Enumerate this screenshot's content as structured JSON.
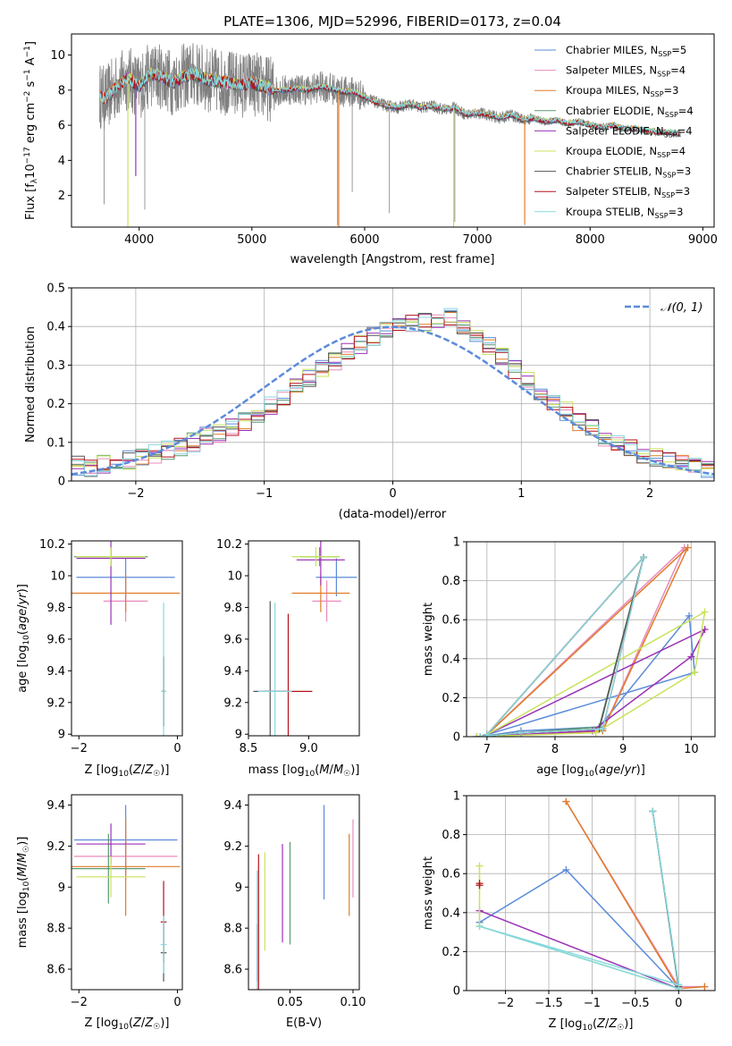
{
  "figure_title": "PLATE=1306, MJD=52996, FIBERID=0173, z=0.04",
  "colors": {
    "Chabrier MILES": "#5b8bd9",
    "Salpeter MILES": "#e88cbd",
    "Kroupa MILES": "#e07b29",
    "Chabrier ELODIE": "#5a9a72",
    "Salpeter ELODIE": "#9b32b5",
    "Kroupa ELODIE": "#c8e35a",
    "Chabrier STELIB": "#555555",
    "Salpeter STELIB": "#b5121b",
    "Kroupa STELIB": "#86d8de"
  },
  "chart_data": [
    {
      "id": "spectrum",
      "type": "line",
      "title": "PLATE=1306, MJD=52996, FIBERID=0173, z=0.04",
      "xlabel": "wavelength [Angstrom, rest frame]",
      "ylabel": "Flux [f_λ 10^-17 erg cm^-2 s^-1 A^-1]",
      "xlim": [
        3400,
        9100
      ],
      "ylim": [
        0.2,
        11.2
      ],
      "xticks": [
        4000,
        5000,
        6000,
        7000,
        8000,
        9000
      ],
      "yticks": [
        2,
        4,
        6,
        8,
        10
      ],
      "grid": false,
      "legend_position": "top-right",
      "legend": [
        {
          "name": "Chabrier MILES",
          "nssp": "5"
        },
        {
          "name": "Salpeter MILES",
          "nssp": "4"
        },
        {
          "name": "Kroupa MILES",
          "nssp": "3"
        },
        {
          "name": "Chabrier ELODIE",
          "nssp": "4"
        },
        {
          "name": "Salpeter ELODIE",
          "nssp": "4"
        },
        {
          "name": "Kroupa ELODIE",
          "nssp": "4"
        },
        {
          "name": "Chabrier STELIB",
          "nssp": "3"
        },
        {
          "name": "Salpeter STELIB",
          "nssp": "3"
        },
        {
          "name": "Kroupa STELIB",
          "nssp": "3"
        }
      ],
      "data_continuum": [
        [
          3650,
          7.7
        ],
        [
          3700,
          7.5
        ],
        [
          3800,
          8.2
        ],
        [
          3900,
          8.7
        ],
        [
          4000,
          8.2
        ],
        [
          4100,
          8.9
        ],
        [
          4200,
          8.8
        ],
        [
          4300,
          8.4
        ],
        [
          4400,
          8.8
        ],
        [
          4500,
          8.9
        ],
        [
          4600,
          8.6
        ],
        [
          4700,
          8.5
        ],
        [
          4800,
          8.4
        ],
        [
          4900,
          8.3
        ],
        [
          5000,
          8.4
        ],
        [
          5100,
          8.2
        ],
        [
          5200,
          8.0
        ],
        [
          5300,
          8.0
        ],
        [
          5400,
          8.1
        ],
        [
          5500,
          8.0
        ],
        [
          5600,
          8.2
        ],
        [
          5700,
          8.1
        ],
        [
          5800,
          7.9
        ],
        [
          5900,
          7.9
        ],
        [
          6000,
          7.6
        ],
        [
          6100,
          7.3
        ],
        [
          6200,
          7.1
        ],
        [
          6300,
          7.0
        ],
        [
          6400,
          7.2
        ],
        [
          6500,
          7.0
        ],
        [
          6600,
          7.1
        ],
        [
          6700,
          6.9
        ],
        [
          6800,
          7.0
        ],
        [
          6900,
          6.6
        ],
        [
          7000,
          6.7
        ],
        [
          7100,
          6.6
        ],
        [
          7200,
          6.4
        ],
        [
          7300,
          6.6
        ],
        [
          7400,
          6.3
        ],
        [
          7500,
          6.4
        ],
        [
          7600,
          6.2
        ],
        [
          7700,
          6.3
        ],
        [
          7800,
          6.1
        ],
        [
          7900,
          6.2
        ],
        [
          8000,
          6.0
        ],
        [
          8100,
          5.9
        ],
        [
          8200,
          6.0
        ],
        [
          8300,
          5.8
        ],
        [
          8400,
          5.8
        ],
        [
          8500,
          5.7
        ],
        [
          8600,
          5.6
        ],
        [
          8700,
          5.6
        ],
        [
          8800,
          5.5
        ]
      ],
      "data_dips": [
        [
          3690,
          1.5
        ],
        [
          4050,
          1.2
        ],
        [
          5760,
          0.3
        ],
        [
          5890,
          2.2
        ],
        [
          6220,
          1.0
        ],
        [
          6800,
          0.5
        ],
        [
          7420,
          0.3
        ]
      ],
      "model_dips": [
        {
          "wavelength": 3900,
          "flux": 0.2,
          "series": "Kroupa ELODIE"
        },
        {
          "wavelength": 3970,
          "flux": 3.1,
          "series": "Salpeter ELODIE"
        },
        {
          "wavelength": 5770,
          "flux": 0.2,
          "series": "Kroupa MILES"
        },
        {
          "wavelength": 6790,
          "flux": 0.2,
          "series": "Kroupa ELODIE"
        },
        {
          "wavelength": 7420,
          "flux": 0.4,
          "series": "Kroupa MILES"
        }
      ]
    },
    {
      "id": "residuals",
      "type": "line",
      "xlabel": "(data-model)/error",
      "ylabel": "Normed distribution",
      "xlim": [
        -2.5,
        2.5
      ],
      "ylim": [
        0.0,
        0.5
      ],
      "xticks": [
        -2,
        -1,
        0,
        1,
        2
      ],
      "yticks": [
        0.0,
        0.1,
        0.2,
        0.3,
        0.4,
        0.5
      ],
      "grid": true,
      "legend_position": "top-right",
      "gaussian_label": "𝒩(0, 1)",
      "bins": 50,
      "hist_base": [
        0.04,
        0.035,
        0.045,
        0.05,
        0.055,
        0.06,
        0.07,
        0.08,
        0.09,
        0.1,
        0.115,
        0.125,
        0.14,
        0.155,
        0.175,
        0.195,
        0.215,
        0.24,
        0.265,
        0.29,
        0.31,
        0.335,
        0.355,
        0.375,
        0.39,
        0.4,
        0.405,
        0.41,
        0.42,
        0.425,
        0.4,
        0.375,
        0.35,
        0.32,
        0.29,
        0.26,
        0.235,
        0.205,
        0.18,
        0.155,
        0.135,
        0.115,
        0.1,
        0.085,
        0.07,
        0.06,
        0.05,
        0.045,
        0.035,
        0.03
      ]
    },
    {
      "id": "age-vs-Z",
      "type": "scatter",
      "xlabel": "Z [log₁₀(Z/Z☉)]",
      "ylabel": "age  [log₁₀(age/yr)]",
      "xlim": [
        -2.15,
        0.1
      ],
      "ylim": [
        8.99,
        10.22
      ],
      "xticks": [
        -2,
        0
      ],
      "yticks": [
        9.0,
        9.2,
        9.4,
        9.6,
        9.8,
        10.0,
        10.2
      ],
      "grid": false,
      "points": [
        {
          "series": "Chabrier MILES",
          "x": -1.05,
          "xerr": 1.0,
          "y": 9.99,
          "yerr": 0.12
        },
        {
          "series": "Salpeter MILES",
          "x": -1.05,
          "xerr": 0.45,
          "y": 9.84,
          "yerr": 0.13
        },
        {
          "series": "Kroupa MILES",
          "x": -1.05,
          "xerr": 1.1,
          "y": 9.89,
          "yerr": 0.12
        },
        {
          "series": "Chabrier ELODIE",
          "x": -1.35,
          "xerr": 0.75,
          "y": 10.12,
          "yerr": 0.06
        },
        {
          "series": "Salpeter ELODIE",
          "x": -1.35,
          "xerr": 0.7,
          "y": 10.11,
          "yerr": 0.42
        },
        {
          "series": "Kroupa ELODIE",
          "x": -1.35,
          "xerr": 0.7,
          "y": 10.12,
          "yerr": 0.06
        },
        {
          "series": "Chabrier STELIB",
          "x": -0.28,
          "xerr": 0.04,
          "y": 9.27,
          "yerr": 0.22
        },
        {
          "series": "Salpeter STELIB",
          "x": -0.28,
          "xerr": 0.04,
          "y": 9.27,
          "yerr": 0.22
        },
        {
          "series": "Kroupa STELIB",
          "x": -0.28,
          "xerr": 0.04,
          "y": 9.27,
          "yerr": 0.56
        }
      ]
    },
    {
      "id": "age-vs-mass",
      "type": "scatter",
      "xlabel": "mass [log₁₀(M/M☉)]",
      "xlim": [
        8.5,
        9.42
      ],
      "ylim": [
        8.99,
        10.22
      ],
      "xticks": [
        8.5,
        9.0
      ],
      "xticklabels": [
        "8.5",
        "9.0"
      ],
      "yticks": [
        9.0,
        9.2,
        9.4,
        9.6,
        9.8,
        10.0,
        10.2
      ],
      "grid": false,
      "points": [
        {
          "series": "Chabrier MILES",
          "x": 9.23,
          "xerr": 0.17,
          "y": 9.99,
          "yerr": 0.12
        },
        {
          "series": "Salpeter MILES",
          "x": 9.15,
          "xerr": 0.12,
          "y": 9.84,
          "yerr": 0.13
        },
        {
          "series": "Kroupa MILES",
          "x": 9.1,
          "xerr": 0.24,
          "y": 9.89,
          "yerr": 0.12
        },
        {
          "series": "Chabrier ELODIE",
          "x": 9.09,
          "xerr": 0.16,
          "y": 10.12,
          "yerr": 0.06
        },
        {
          "series": "Salpeter ELODIE",
          "x": 9.1,
          "xerr": 0.2,
          "y": 10.1,
          "yerr": 0.16
        },
        {
          "series": "Kroupa ELODIE",
          "x": 9.06,
          "xerr": 0.2,
          "y": 10.12,
          "yerr": 0.06
        },
        {
          "series": "Chabrier STELIB",
          "x": 8.68,
          "xerr": 0.14,
          "y": 9.27,
          "yerr": 0.57
        },
        {
          "series": "Salpeter STELIB",
          "x": 8.83,
          "xerr": 0.2,
          "y": 9.27,
          "yerr": 0.49
        },
        {
          "series": "Kroupa STELIB",
          "x": 8.72,
          "xerr": 0.14,
          "y": 9.27,
          "yerr": 0.56
        }
      ]
    },
    {
      "id": "weight-vs-age",
      "type": "line",
      "xlabel": "age  [log₁₀(age/yr)]",
      "ylabel": "mass weight",
      "xlim": [
        6.7,
        10.35
      ],
      "ylim": [
        0.0,
        1.0
      ],
      "xticks": [
        7,
        8,
        9,
        10
      ],
      "yticks": [
        0.0,
        0.2,
        0.4,
        0.6,
        0.8,
        1.0
      ],
      "grid": true,
      "series": [
        {
          "name": "Chabrier MILES",
          "x": [
            6.9,
            7.5,
            8.65,
            9.97,
            10.05,
            7.0
          ],
          "y": [
            0.0,
            0.03,
            0.05,
            0.62,
            0.33,
            0.01
          ]
        },
        {
          "name": "Salpeter MILES",
          "x": [
            6.9,
            8.7,
            9.9,
            7.0
          ],
          "y": [
            0.0,
            0.03,
            0.97,
            0.01
          ]
        },
        {
          "name": "Kroupa MILES",
          "x": [
            6.9,
            8.7,
            9.95,
            7.0
          ],
          "y": [
            0.0,
            0.03,
            0.97,
            0.01
          ]
        },
        {
          "name": "Chabrier ELODIE",
          "x": [
            6.85,
            7.5,
            8.65,
            9.3,
            7.0
          ],
          "y": [
            0.0,
            0.02,
            0.05,
            0.92,
            0.01
          ]
        },
        {
          "name": "Salpeter ELODIE",
          "x": [
            6.85,
            8.55,
            10.0,
            10.2,
            7.0
          ],
          "y": [
            0.0,
            0.03,
            0.41,
            0.55,
            0.01
          ]
        },
        {
          "name": "Kroupa ELODIE",
          "x": [
            6.85,
            8.6,
            10.05,
            10.2,
            7.0
          ],
          "y": [
            0.0,
            0.02,
            0.33,
            0.64,
            0.01
          ]
        },
        {
          "name": "Chabrier STELIB",
          "x": [
            6.9,
            7.5,
            8.65,
            9.3,
            7.0
          ],
          "y": [
            0.0,
            0.02,
            0.04,
            0.92,
            0.01
          ]
        },
        {
          "name": "Salpeter STELIB",
          "x": [
            6.9,
            7.5,
            8.7,
            9.3,
            7.0
          ],
          "y": [
            0.0,
            0.02,
            0.04,
            0.92,
            0.01
          ]
        },
        {
          "name": "Kroupa STELIB",
          "x": [
            6.9,
            7.5,
            8.7,
            9.3,
            7.0
          ],
          "y": [
            0.0,
            0.02,
            0.04,
            0.92,
            0.01
          ]
        }
      ]
    },
    {
      "id": "mass-vs-Z",
      "type": "scatter",
      "xlabel": "Z [log₁₀(Z/Z☉)]",
      "ylabel": "mass [log₁₀(M/M☉)]",
      "xlim": [
        -2.15,
        0.1
      ],
      "ylim": [
        8.5,
        9.45
      ],
      "xticks": [
        -2,
        0
      ],
      "yticks": [
        8.6,
        8.8,
        9.0,
        9.2,
        9.4
      ],
      "grid": false,
      "points": [
        {
          "series": "Chabrier MILES",
          "x": -1.05,
          "xerr": 1.05,
          "y": 9.23,
          "yerr": 0.17
        },
        {
          "series": "Salpeter MILES",
          "x": -1.05,
          "xerr": 1.05,
          "y": 9.15,
          "yerr": 0.12
        },
        {
          "series": "Kroupa MILES",
          "x": -1.05,
          "xerr": 1.1,
          "y": 9.1,
          "yerr": 0.24
        },
        {
          "series": "Chabrier ELODIE",
          "x": -1.4,
          "xerr": 0.75,
          "y": 9.09,
          "yerr": 0.17
        },
        {
          "series": "Salpeter ELODIE",
          "x": -1.35,
          "xerr": 0.7,
          "y": 9.21,
          "yerr": 0.1
        },
        {
          "series": "Kroupa ELODIE",
          "x": -1.35,
          "xerr": 0.7,
          "y": 9.05,
          "yerr": 0.1
        },
        {
          "series": "Chabrier STELIB",
          "x": -0.28,
          "xerr": 0.06,
          "y": 8.68,
          "yerr": 0.14
        },
        {
          "series": "Salpeter STELIB",
          "x": -0.28,
          "xerr": 0.06,
          "y": 8.83,
          "yerr": 0.2
        },
        {
          "series": "Kroupa STELIB",
          "x": -0.28,
          "xerr": 0.06,
          "y": 8.72,
          "yerr": 0.14
        }
      ]
    },
    {
      "id": "mass-vs-EBV",
      "type": "scatter",
      "xlabel": "E(B-V)",
      "xlim": [
        0.017,
        0.105
      ],
      "ylim": [
        8.5,
        9.45
      ],
      "xticks": [
        0.05,
        0.1
      ],
      "xticklabels": [
        "0.05",
        "0.10"
      ],
      "yticks": [
        8.6,
        8.8,
        9.0,
        9.2,
        9.4
      ],
      "grid": false,
      "points": [
        {
          "series": "Chabrier MILES",
          "x": 0.077,
          "y": 9.17,
          "yerr": 0.23
        },
        {
          "series": "Salpeter MILES",
          "x": 0.1,
          "y": 9.14,
          "yerr": 0.19
        },
        {
          "series": "Kroupa MILES",
          "x": 0.097,
          "y": 9.06,
          "yerr": 0.2
        },
        {
          "series": "Chabrier ELODIE",
          "x": 0.05,
          "y": 8.97,
          "yerr": 0.25
        },
        {
          "series": "Salpeter ELODIE",
          "x": 0.044,
          "y": 8.97,
          "yerr": 0.24
        },
        {
          "series": "Kroupa ELODIE",
          "x": 0.03,
          "y": 8.93,
          "yerr": 0.24
        },
        {
          "series": "Chabrier STELIB",
          "x": 0.024,
          "y": 8.68,
          "yerr": 0.14
        },
        {
          "series": "Salpeter STELIB",
          "x": 0.025,
          "y": 8.83,
          "yerr": 0.33
        },
        {
          "series": "Kroupa STELIB",
          "x": 0.024,
          "y": 8.74,
          "yerr": 0.34
        }
      ]
    },
    {
      "id": "weight-vs-Z",
      "type": "line",
      "xlabel": "Z [log₁₀(Z/Z☉)]",
      "ylabel": "mass weight",
      "xlim": [
        -2.45,
        0.42
      ],
      "ylim": [
        0.0,
        1.0
      ],
      "xticks": [
        -2.0,
        -1.5,
        -1.0,
        -0.5,
        0.0
      ],
      "yticks": [
        0.0,
        0.2,
        0.4,
        0.6,
        0.8,
        1.0
      ],
      "grid": true,
      "series": [
        {
          "name": "Chabrier MILES",
          "x": [
            -2.3,
            -1.3,
            0.0,
            0.0
          ],
          "y": [
            0.35,
            0.62,
            0.01,
            0.03
          ]
        },
        {
          "name": "Salpeter MILES",
          "x": [
            -1.3,
            0.0,
            0.3
          ],
          "y": [
            0.97,
            0.02,
            0.02
          ]
        },
        {
          "name": "Kroupa MILES",
          "x": [
            -1.3,
            0.0,
            0.3
          ],
          "y": [
            0.97,
            0.01,
            0.02
          ]
        },
        {
          "name": "Chabrier ELODIE",
          "x": [
            -0.3,
            0.0
          ],
          "y": [
            0.92,
            0.01
          ]
        },
        {
          "name": "Salpeter ELODIE",
          "x": [
            -2.3,
            0.0
          ],
          "y": [
            0.41,
            0.01
          ]
        },
        {
          "name": "Kroupa ELODIE",
          "x": [
            -2.3,
            -2.3,
            0.0
          ],
          "y": [
            0.64,
            0.33,
            0.01
          ]
        },
        {
          "name": "Chabrier STELIB",
          "x": [
            -0.3,
            0.0
          ],
          "y": [
            0.92,
            0.02
          ]
        },
        {
          "name": "Salpeter STELIB",
          "x": [
            -2.3,
            -2.3
          ],
          "y": [
            0.55,
            0.54
          ]
        },
        {
          "name": "Kroupa STELIB",
          "x": [
            -0.3,
            0.0,
            -2.3,
            0.0
          ],
          "y": [
            0.92,
            0.03,
            0.33,
            0.01
          ]
        }
      ]
    }
  ]
}
